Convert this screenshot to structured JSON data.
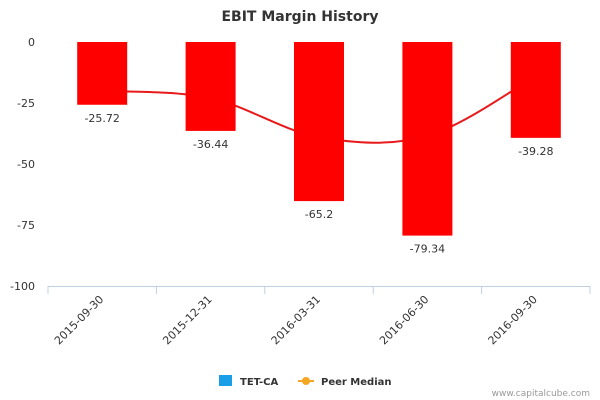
{
  "chart_data": {
    "type": "bar",
    "title": "EBIT Margin History",
    "categories": [
      "2015-09-30",
      "2015-12-31",
      "2016-03-31",
      "2016-06-30",
      "2016-09-30"
    ],
    "series": [
      {
        "name": "TET-CA",
        "kind": "bar",
        "values": [
          -25.72,
          -36.44,
          -65.2,
          -79.34,
          -39.28
        ]
      },
      {
        "name": "Peer Median",
        "kind": "line",
        "values": [
          -20,
          -23,
          -39,
          -38.5,
          -14
        ]
      }
    ],
    "data_labels": [
      "-25.72",
      "-36.44",
      "-65.2",
      "-79.34",
      "-39.28"
    ],
    "ylim": [
      -100,
      0
    ],
    "yticks": [
      0,
      -25,
      -50,
      -75,
      -100
    ],
    "xlabel": "",
    "ylabel": "",
    "grid": false,
    "legend_position": "bottom",
    "colors": {
      "bar": "#ff0000",
      "line": "#e8191b",
      "legend_bar": "#1a9ee8",
      "legend_line": "#f5a623",
      "axis": "#c0d0e0"
    }
  },
  "legend": [
    {
      "label": "TET-CA",
      "icon": "square-swatch"
    },
    {
      "label": "Peer Median",
      "icon": "line-dot-swatch"
    }
  ],
  "watermark": "www.capitalcube.com"
}
